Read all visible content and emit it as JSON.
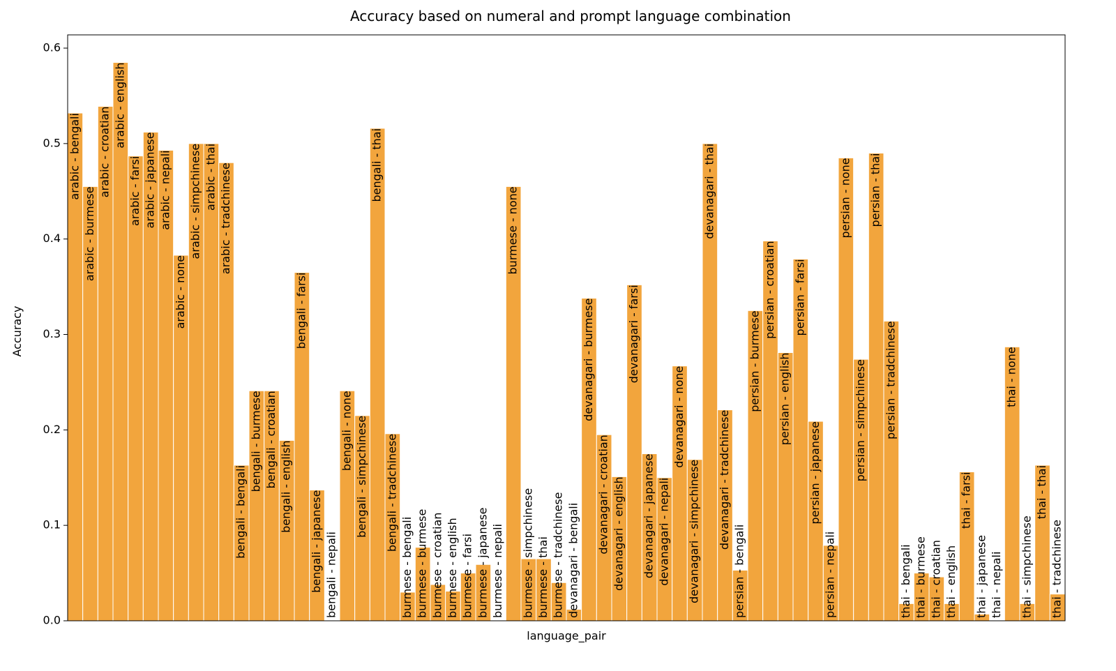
{
  "chart_data": {
    "type": "bar",
    "title": "Accuracy based on numeral and prompt language combination",
    "xlabel": "language_pair",
    "ylabel": "Accuracy",
    "categories": [
      "arabic - bengali",
      "arabic - burmese",
      "arabic - croatian",
      "arabic - english",
      "arabic - farsi",
      "arabic - japanese",
      "arabic - nepali",
      "arabic - none",
      "arabic - simpchinese",
      "arabic - thai",
      "arabic - tradchinese",
      "bengali - bengali",
      "bengali - burmese",
      "bengali - croatian",
      "bengali - english",
      "bengali - farsi",
      "bengali - japanese",
      "bengali - nepali",
      "bengali - none",
      "bengali - simpchinese",
      "bengali - thai",
      "bengali - tradchinese",
      "burmese - bengali",
      "burmese - burmese",
      "burmese - croatian",
      "burmese - english",
      "burmese - farsi",
      "burmese - japanese",
      "burmese - nepali",
      "burmese - none",
      "burmese - simpchinese",
      "burmese - thai",
      "burmese - tradchinese",
      "devanagari - bengali",
      "devanagari - burmese",
      "devanagari - croatian",
      "devanagari - english",
      "devanagari - farsi",
      "devanagari - japanese",
      "devanagari - nepali",
      "devanagari - none",
      "devanagari - simpchinese",
      "devanagari - thai",
      "devanagari - tradchinese",
      "persian - bengali",
      "persian - burmese",
      "persian - croatian",
      "persian - english",
      "persian - farsi",
      "persian - japanese",
      "persian - nepali",
      "persian - none",
      "persian - simpchinese",
      "persian - thai",
      "persian - tradchinese",
      "thai - bengali",
      "thai - burmese",
      "thai - croatian",
      "thai - english",
      "thai - farsi",
      "thai - japanese",
      "thai - nepali",
      "thai - none",
      "thai - simpchinese",
      "thai - thai",
      "thai - tradchinese"
    ],
    "values": [
      0.532,
      0.455,
      0.539,
      0.585,
      0.487,
      0.512,
      0.493,
      0.383,
      0.5,
      0.5,
      0.48,
      0.163,
      0.241,
      0.241,
      0.189,
      0.365,
      0.137,
      0.0,
      0.241,
      0.215,
      0.516,
      0.196,
      0.03,
      0.077,
      0.038,
      0.031,
      0.05,
      0.059,
      0.0,
      0.455,
      0.065,
      0.065,
      0.04,
      0.012,
      0.338,
      0.195,
      0.151,
      0.352,
      0.175,
      0.15,
      0.267,
      0.169,
      0.5,
      0.221,
      0.053,
      0.325,
      0.398,
      0.281,
      0.379,
      0.209,
      0.079,
      0.485,
      0.274,
      0.49,
      0.314,
      0.018,
      0.05,
      0.046,
      0.018,
      0.156,
      0.007,
      0.0,
      0.287,
      0.018,
      0.163,
      0.028
    ],
    "color": "#f2a53d",
    "ylim": [
      0,
      0.6
    ],
    "yticks": [
      {
        "value": 0,
        "label": "0.0"
      },
      0.1,
      0.2,
      0.3,
      0.4,
      0.5,
      0.6
    ]
  }
}
